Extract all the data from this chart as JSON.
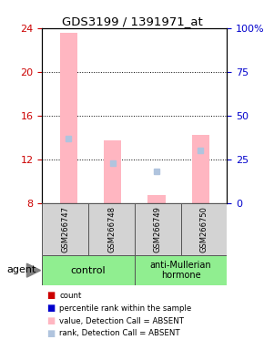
{
  "title": "GDS3199 / 1391971_at",
  "samples": [
    "GSM266747",
    "GSM266748",
    "GSM266749",
    "GSM266750"
  ],
  "ylim_left": [
    8,
    24
  ],
  "ylim_right": [
    0,
    100
  ],
  "yticks_left": [
    8,
    12,
    16,
    20,
    24
  ],
  "yticks_right": [
    0,
    25,
    50,
    75,
    100
  ],
  "ytick_labels_right": [
    "0",
    "25",
    "50",
    "75",
    "100%"
  ],
  "bar_values": [
    23.6,
    13.7,
    8.7,
    14.2
  ],
  "rank_values": [
    37,
    23,
    18,
    30
  ],
  "bar_color_absent": "#FFB6C1",
  "rank_color_absent": "#B0C4DE",
  "bar_width": 0.4,
  "xpositions": [
    0,
    1,
    2,
    3
  ],
  "group_label_1": "control",
  "group_label_2": "anti-Mullerian\nhormone",
  "agent_label": "agent",
  "legend_items": [
    {
      "label": "count",
      "color": "#cc0000"
    },
    {
      "label": "percentile rank within the sample",
      "color": "#0000cc"
    },
    {
      "label": "value, Detection Call = ABSENT",
      "color": "#FFB6C1"
    },
    {
      "label": "rank, Detection Call = ABSENT",
      "color": "#B0C4DE"
    }
  ],
  "left_ytick_color": "#cc0000",
  "right_ytick_color": "#0000cc",
  "sample_bg_color": "#d3d3d3",
  "cell_border_color": "#555555",
  "group_bg_color": "#90EE90"
}
